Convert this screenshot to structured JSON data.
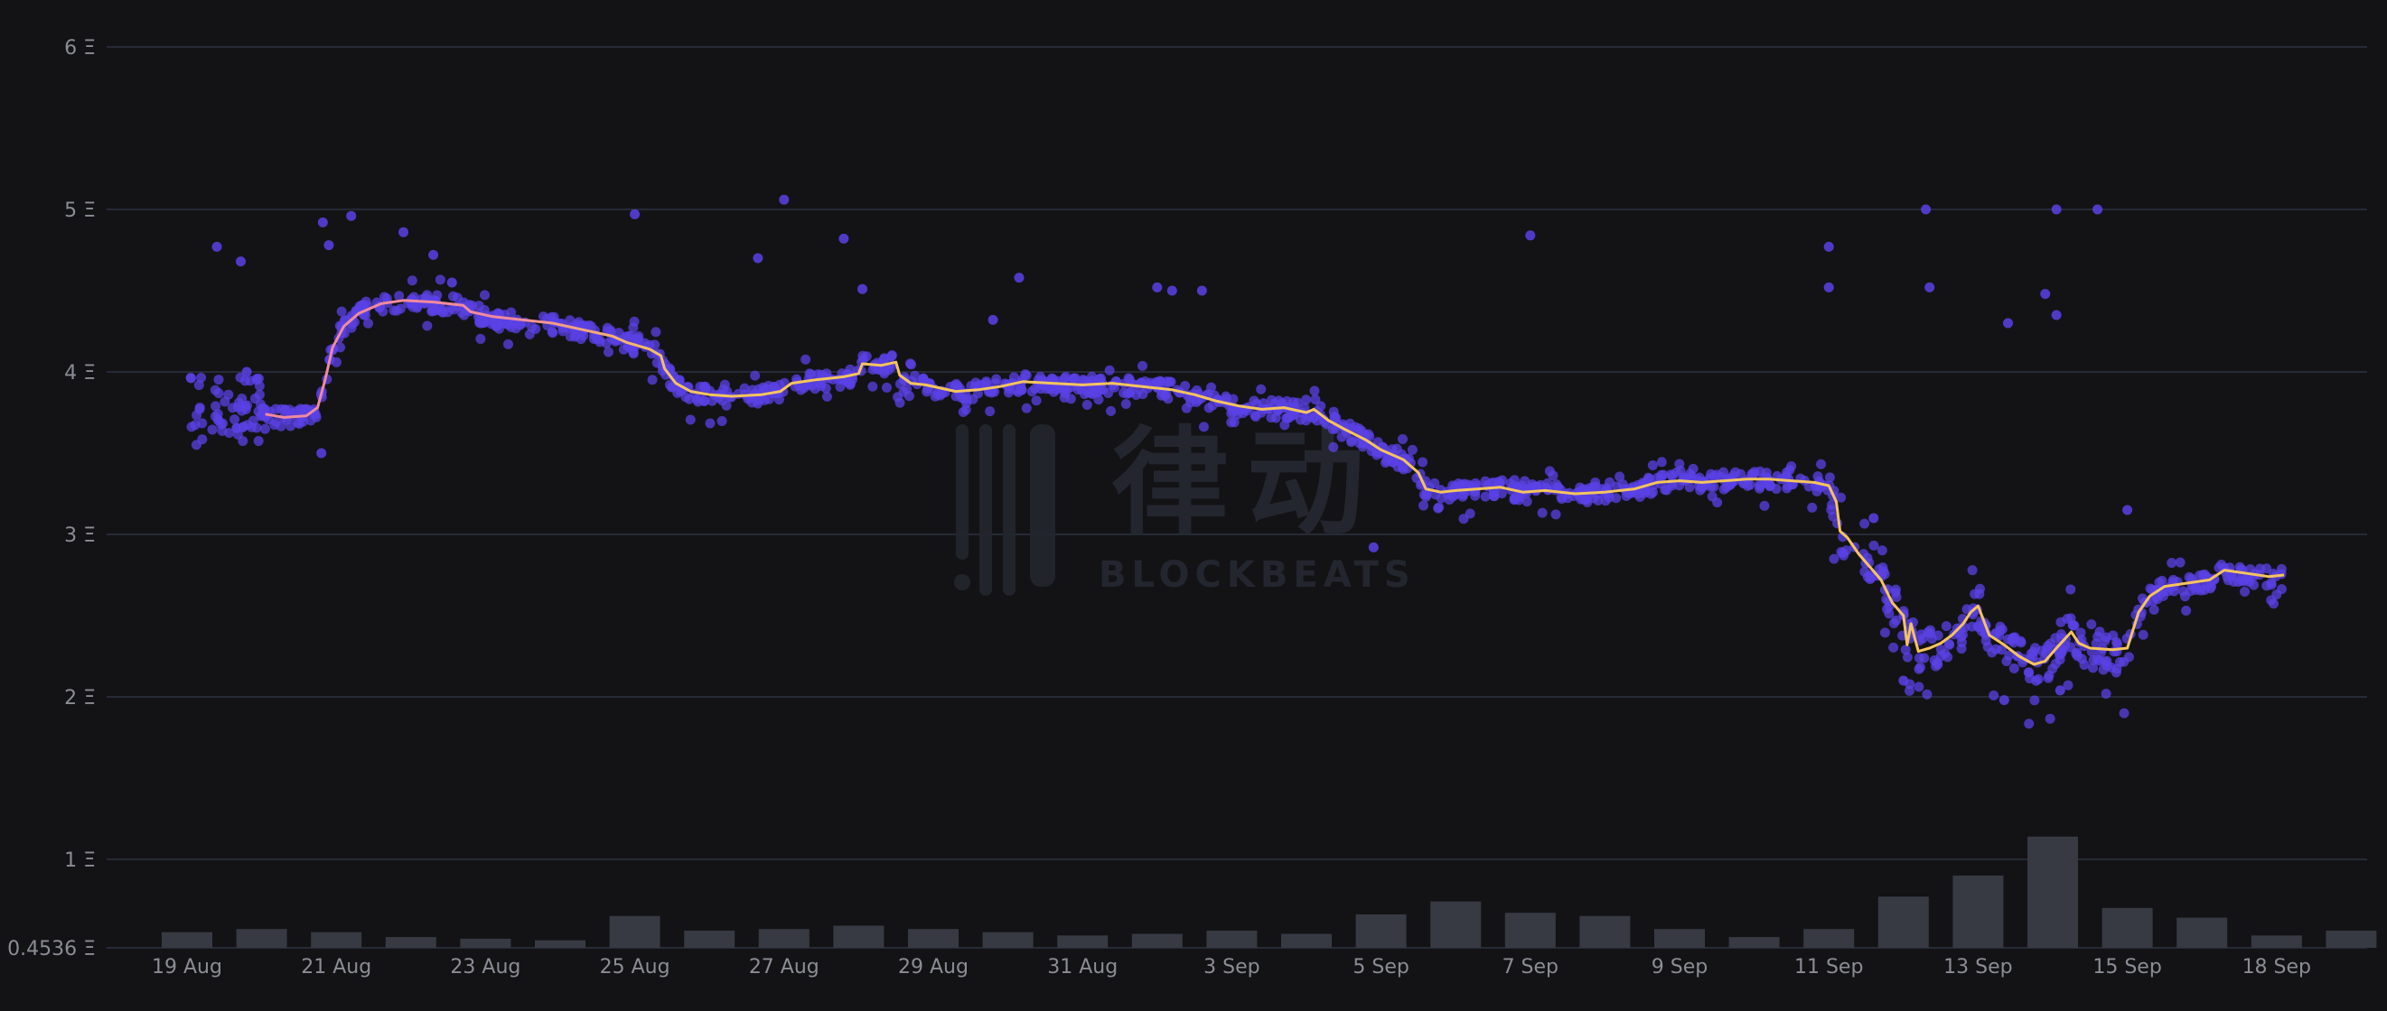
{
  "chart_data": {
    "type": "scatter",
    "title": "",
    "xlabel": "",
    "ylabel": "",
    "currency_symbol": "Ξ",
    "y_ticks": [
      {
        "value": 0.4536,
        "label": "0.4536 Ξ"
      },
      {
        "value": 1,
        "label": "1 Ξ"
      },
      {
        "value": 2,
        "label": "2 Ξ"
      },
      {
        "value": 3,
        "label": "3 Ξ"
      },
      {
        "value": 4,
        "label": "4 Ξ"
      },
      {
        "value": 5,
        "label": "5 Ξ"
      },
      {
        "value": 6,
        "label": "6 Ξ"
      }
    ],
    "ylim": [
      0.4536,
      6
    ],
    "x_start": "2023-08-19",
    "x_ticks": [
      {
        "day": 0,
        "label": "19 Aug"
      },
      {
        "day": 2,
        "label": "21 Aug"
      },
      {
        "day": 4,
        "label": "23 Aug"
      },
      {
        "day": 6,
        "label": "25 Aug"
      },
      {
        "day": 8,
        "label": "27 Aug"
      },
      {
        "day": 10,
        "label": "29 Aug"
      },
      {
        "day": 12,
        "label": "31 Aug"
      },
      {
        "day": 14,
        "label": "3 Sep"
      },
      {
        "day": 16,
        "label": "5 Sep"
      },
      {
        "day": 18,
        "label": "7 Sep"
      },
      {
        "day": 20,
        "label": "9 Sep"
      },
      {
        "day": 22,
        "label": "11 Sep"
      },
      {
        "day": 24,
        "label": "13 Sep"
      },
      {
        "day": 26,
        "label": "15 Sep"
      },
      {
        "day": 28,
        "label": "18 Sep"
      }
    ],
    "xlim": [
      -0.5,
      29
    ],
    "series": [
      {
        "kind": "line",
        "color_start": "#f08a9e",
        "color_end": "#f5c45e",
        "points": [
          [
            1.05,
            3.74
          ],
          [
            1.3,
            3.72
          ],
          [
            1.6,
            3.73
          ],
          [
            1.75,
            3.78
          ],
          [
            1.85,
            3.95
          ],
          [
            1.95,
            4.15
          ],
          [
            2.1,
            4.28
          ],
          [
            2.3,
            4.36
          ],
          [
            2.6,
            4.42
          ],
          [
            2.9,
            4.44
          ],
          [
            3.3,
            4.43
          ],
          [
            3.7,
            4.41
          ],
          [
            3.8,
            4.37
          ],
          [
            4.1,
            4.34
          ],
          [
            4.5,
            4.32
          ],
          [
            4.9,
            4.3
          ],
          [
            5.3,
            4.26
          ],
          [
            5.7,
            4.22
          ],
          [
            5.9,
            4.18
          ],
          [
            6.2,
            4.14
          ],
          [
            6.35,
            4.1
          ],
          [
            6.4,
            4.02
          ],
          [
            6.55,
            3.93
          ],
          [
            6.75,
            3.88
          ],
          [
            7.0,
            3.86
          ],
          [
            7.3,
            3.85
          ],
          [
            7.7,
            3.86
          ],
          [
            7.95,
            3.88
          ],
          [
            8.1,
            3.93
          ],
          [
            8.4,
            3.95
          ],
          [
            8.8,
            3.97
          ],
          [
            9.0,
            3.99
          ],
          [
            9.05,
            4.05
          ],
          [
            9.3,
            4.04
          ],
          [
            9.5,
            4.06
          ],
          [
            9.55,
            3.98
          ],
          [
            9.7,
            3.93
          ],
          [
            9.9,
            3.92
          ],
          [
            10.1,
            3.9
          ],
          [
            10.3,
            3.88
          ],
          [
            10.6,
            3.89
          ],
          [
            10.9,
            3.91
          ],
          [
            11.2,
            3.94
          ],
          [
            11.6,
            3.93
          ],
          [
            12.0,
            3.92
          ],
          [
            12.4,
            3.93
          ],
          [
            12.8,
            3.91
          ],
          [
            13.2,
            3.89
          ],
          [
            13.5,
            3.86
          ],
          [
            13.8,
            3.82
          ],
          [
            14.1,
            3.79
          ],
          [
            14.4,
            3.77
          ],
          [
            14.7,
            3.78
          ],
          [
            15.0,
            3.75
          ],
          [
            15.1,
            3.77
          ],
          [
            15.3,
            3.7
          ],
          [
            15.5,
            3.65
          ],
          [
            15.8,
            3.58
          ],
          [
            16.0,
            3.52
          ],
          [
            16.3,
            3.46
          ],
          [
            16.5,
            3.38
          ],
          [
            16.6,
            3.28
          ],
          [
            16.8,
            3.26
          ],
          [
            17.0,
            3.27
          ],
          [
            17.3,
            3.28
          ],
          [
            17.6,
            3.29
          ],
          [
            17.9,
            3.26
          ],
          [
            18.2,
            3.27
          ],
          [
            18.6,
            3.25
          ],
          [
            19.0,
            3.26
          ],
          [
            19.4,
            3.28
          ],
          [
            19.7,
            3.32
          ],
          [
            20.0,
            3.33
          ],
          [
            20.3,
            3.32
          ],
          [
            20.6,
            3.33
          ],
          [
            20.9,
            3.34
          ],
          [
            21.2,
            3.34
          ],
          [
            21.5,
            3.33
          ],
          [
            21.8,
            3.32
          ],
          [
            22.0,
            3.3
          ],
          [
            22.1,
            3.2
          ],
          [
            22.15,
            3.02
          ],
          [
            22.25,
            2.98
          ],
          [
            22.4,
            2.88
          ],
          [
            22.55,
            2.8
          ],
          [
            22.7,
            2.72
          ],
          [
            22.85,
            2.58
          ],
          [
            23.0,
            2.5
          ],
          [
            23.05,
            2.32
          ],
          [
            23.1,
            2.45
          ],
          [
            23.2,
            2.28
          ],
          [
            23.35,
            2.3
          ],
          [
            23.5,
            2.33
          ],
          [
            23.65,
            2.38
          ],
          [
            23.8,
            2.45
          ],
          [
            23.9,
            2.52
          ],
          [
            24.0,
            2.56
          ],
          [
            24.15,
            2.38
          ],
          [
            24.35,
            2.32
          ],
          [
            24.55,
            2.25
          ],
          [
            24.75,
            2.2
          ],
          [
            24.9,
            2.22
          ],
          [
            25.05,
            2.3
          ],
          [
            25.25,
            2.4
          ],
          [
            25.35,
            2.33
          ],
          [
            25.5,
            2.3
          ],
          [
            25.8,
            2.29
          ],
          [
            26.0,
            2.3
          ],
          [
            26.15,
            2.52
          ],
          [
            26.3,
            2.62
          ],
          [
            26.5,
            2.68
          ],
          [
            26.8,
            2.7
          ],
          [
            27.1,
            2.72
          ],
          [
            27.3,
            2.78
          ],
          [
            27.6,
            2.76
          ],
          [
            27.9,
            2.74
          ],
          [
            28.1,
            2.75
          ]
        ]
      },
      {
        "kind": "scatter",
        "color": "#5b42e6",
        "outliers": [
          [
            0.4,
            4.77
          ],
          [
            0.72,
            4.68
          ],
          [
            1.82,
            4.92
          ],
          [
            1.9,
            4.78
          ],
          [
            2.2,
            4.96
          ],
          [
            2.9,
            4.86
          ],
          [
            3.3,
            4.72
          ],
          [
            3.55,
            4.55
          ],
          [
            6.0,
            4.97
          ],
          [
            7.65,
            4.7
          ],
          [
            8.0,
            5.06
          ],
          [
            8.8,
            4.82
          ],
          [
            9.05,
            4.51
          ],
          [
            10.8,
            4.32
          ],
          [
            11.15,
            4.58
          ],
          [
            13.0,
            4.52
          ],
          [
            13.2,
            4.5
          ],
          [
            13.6,
            4.5
          ],
          [
            18.0,
            4.84
          ],
          [
            22.0,
            4.77
          ],
          [
            22.0,
            4.52
          ],
          [
            23.3,
            5.0
          ],
          [
            23.35,
            4.52
          ],
          [
            25.05,
            5.0
          ],
          [
            25.6,
            5.0
          ],
          [
            24.4,
            4.3
          ],
          [
            24.9,
            4.48
          ],
          [
            25.05,
            4.35
          ],
          [
            0.8,
            4.0
          ],
          [
            1.8,
            3.5
          ],
          [
            15.9,
            2.92
          ],
          [
            22.6,
            3.1
          ],
          [
            23.0,
            2.1
          ],
          [
            24.35,
            1.98
          ],
          [
            25.1,
            2.04
          ],
          [
            26.0,
            3.15
          ]
        ],
        "band_noise": 0.055
      },
      {
        "kind": "bar",
        "color": "#373a42",
        "name": "",
        "base": 0.4536,
        "values": [
          0.55,
          0.57,
          0.55,
          0.52,
          0.51,
          0.5,
          0.65,
          0.56,
          0.57,
          0.59,
          0.57,
          0.55,
          0.53,
          0.54,
          0.56,
          0.54,
          0.66,
          0.74,
          0.67,
          0.65,
          0.57,
          0.52,
          0.57,
          0.77,
          0.9,
          1.14,
          0.7,
          0.64,
          0.53,
          0.56
        ]
      }
    ],
    "watermark": {
      "chinese": "律动",
      "latin": "BLOCKBEATS"
    }
  }
}
